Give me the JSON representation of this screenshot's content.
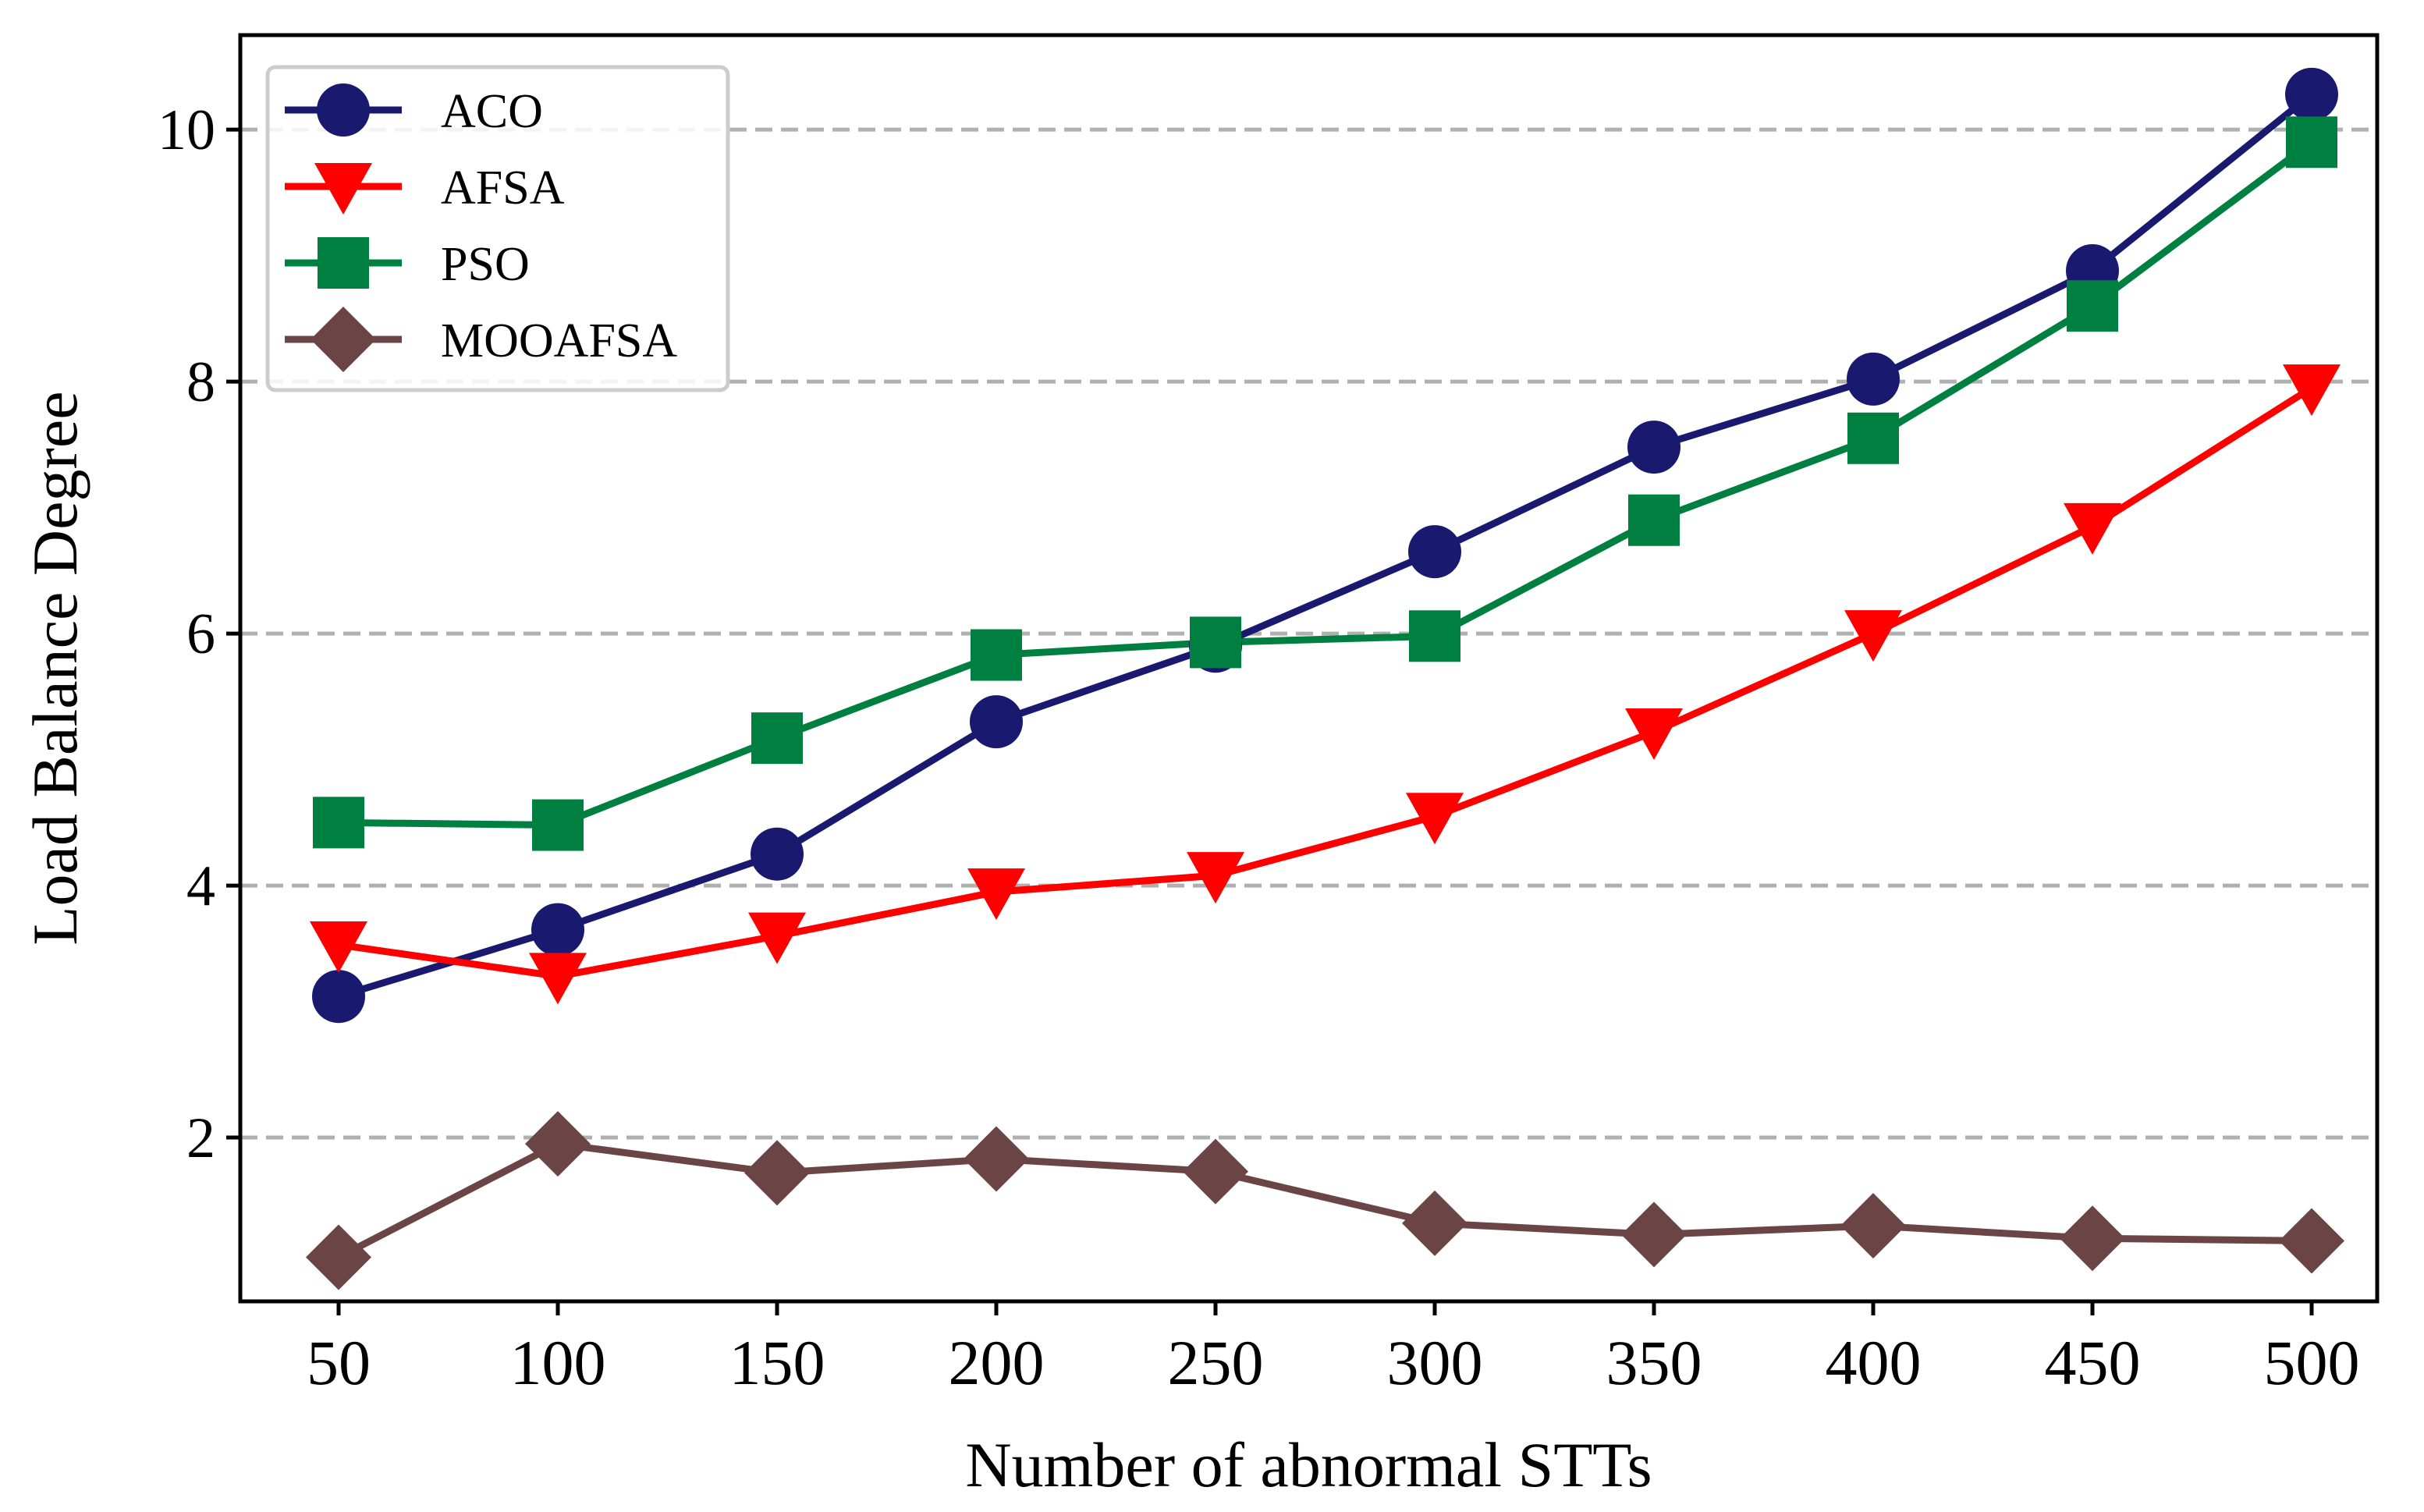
{
  "chart_data": {
    "type": "line",
    "title": "",
    "xlabel": "Number of abnormal STTs",
    "ylabel": "Load Balance Degree",
    "x": [
      50,
      100,
      150,
      200,
      250,
      300,
      350,
      400,
      450,
      500
    ],
    "x_ticks": [
      "50",
      "100",
      "150",
      "200",
      "250",
      "300",
      "350",
      "400",
      "450",
      "500"
    ],
    "y_ticks": [
      2,
      4,
      6,
      8,
      10
    ],
    "y_tick_labels": [
      "2",
      "4",
      "6",
      "8",
      "10"
    ],
    "ylim": [
      0.7,
      10.75
    ],
    "grid": "horizontal dashed",
    "legend_position": "top-left",
    "series": [
      {
        "name": "ACO",
        "color": "#191970",
        "marker": "circle",
        "values": [
          3.12,
          3.65,
          4.25,
          5.3,
          5.9,
          6.65,
          7.48,
          8.02,
          8.88,
          10.28
        ]
      },
      {
        "name": "AFSA",
        "color": "#ff0000",
        "marker": "triangle-down",
        "values": [
          3.53,
          3.28,
          3.6,
          3.95,
          4.08,
          4.55,
          5.22,
          6.0,
          6.85,
          7.95
        ]
      },
      {
        "name": "PSO",
        "color": "#008040",
        "marker": "square",
        "values": [
          4.5,
          4.48,
          5.17,
          5.83,
          5.93,
          5.98,
          6.9,
          7.55,
          8.6,
          9.9
        ]
      },
      {
        "name": "MOOAFSA",
        "color": "#6b4545",
        "marker": "diamond",
        "values": [
          1.05,
          1.95,
          1.72,
          1.83,
          1.73,
          1.32,
          1.23,
          1.3,
          1.2,
          1.18
        ]
      }
    ]
  }
}
